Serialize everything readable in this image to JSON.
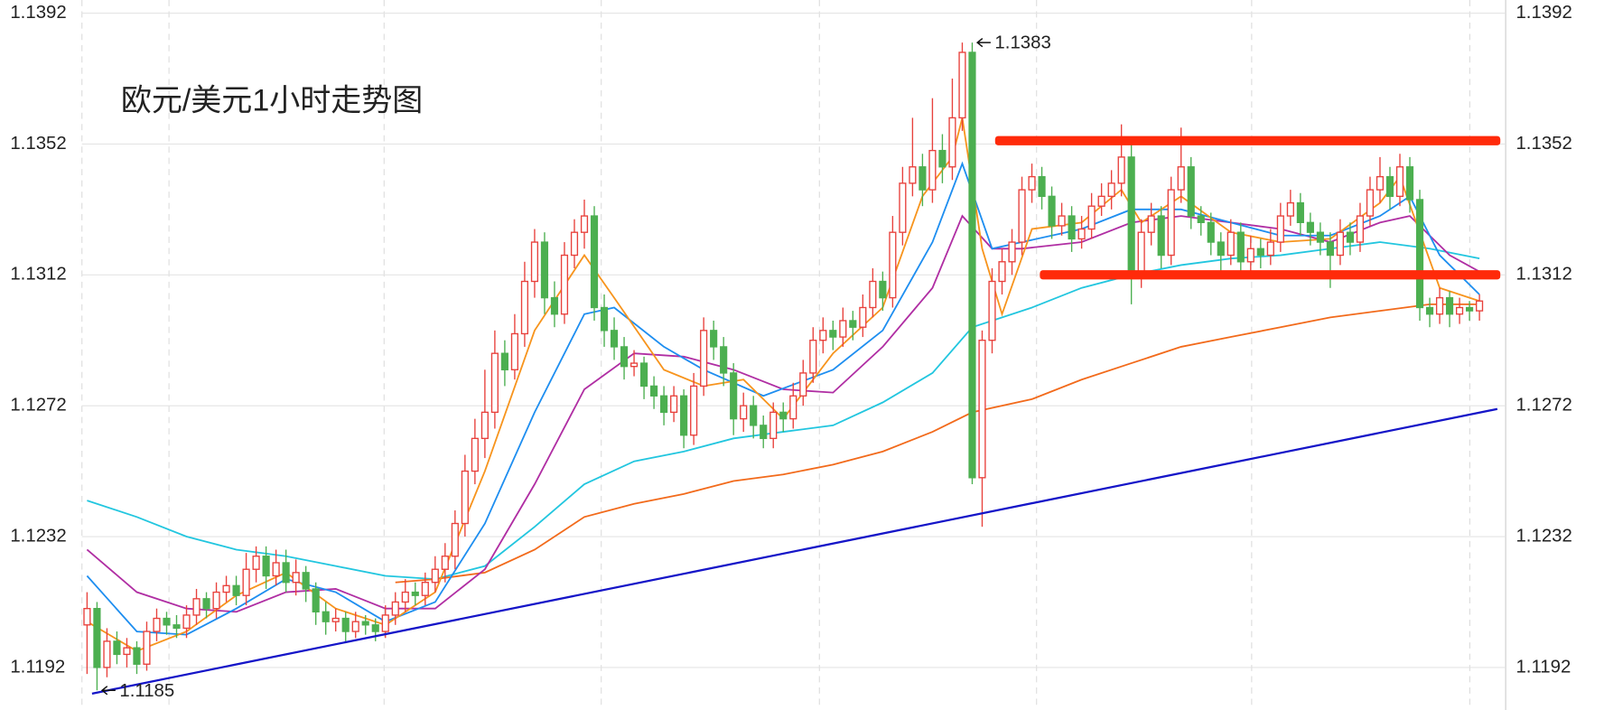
{
  "chart_data": {
    "type": "candlestick",
    "title": "欧元/美元1小时走势图",
    "title_color": "#ff2a0a",
    "ylim": [
      1.1179,
      1.1396
    ],
    "yticks": [
      1.1392,
      1.1352,
      1.1312,
      1.1272,
      1.1232,
      1.1192
    ],
    "grid": true,
    "up_color": "#e8413c",
    "down_color": "#4caf50",
    "ohlc": [
      [
        1.1205,
        1.1215,
        1.119,
        1.121
      ],
      [
        1.121,
        1.1212,
        1.1185,
        1.1192
      ],
      [
        1.1192,
        1.1204,
        1.1189,
        1.12
      ],
      [
        1.12,
        1.1203,
        1.1193,
        1.1196
      ],
      [
        1.1196,
        1.1201,
        1.1192,
        1.1198
      ],
      [
        1.1198,
        1.12,
        1.119,
        1.1193
      ],
      [
        1.1193,
        1.1206,
        1.1191,
        1.1203
      ],
      [
        1.1203,
        1.121,
        1.12,
        1.1207
      ],
      [
        1.1207,
        1.1209,
        1.1202,
        1.1205
      ],
      [
        1.1205,
        1.1208,
        1.1201,
        1.1204
      ],
      [
        1.1204,
        1.1211,
        1.1201,
        1.1208
      ],
      [
        1.1208,
        1.1216,
        1.1205,
        1.1213
      ],
      [
        1.1213,
        1.1215,
        1.1207,
        1.121
      ],
      [
        1.121,
        1.1218,
        1.1207,
        1.1215
      ],
      [
        1.1215,
        1.122,
        1.1212,
        1.1217
      ],
      [
        1.1217,
        1.122,
        1.1211,
        1.1214
      ],
      [
        1.1214,
        1.1227,
        1.1211,
        1.1222
      ],
      [
        1.1222,
        1.1229,
        1.1218,
        1.1226
      ],
      [
        1.1226,
        1.1229,
        1.1216,
        1.122
      ],
      [
        1.122,
        1.1228,
        1.1217,
        1.1224
      ],
      [
        1.1224,
        1.1228,
        1.1215,
        1.1218
      ],
      [
        1.1218,
        1.1225,
        1.1214,
        1.1221
      ],
      [
        1.1221,
        1.1223,
        1.1212,
        1.1216
      ],
      [
        1.1216,
        1.1218,
        1.1205,
        1.1209
      ],
      [
        1.1209,
        1.1212,
        1.1202,
        1.1206
      ],
      [
        1.1206,
        1.121,
        1.1203,
        1.1207
      ],
      [
        1.1207,
        1.1209,
        1.12,
        1.1203
      ],
      [
        1.1203,
        1.1209,
        1.1201,
        1.1206
      ],
      [
        1.1206,
        1.1208,
        1.1202,
        1.1205
      ],
      [
        1.1205,
        1.1207,
        1.12,
        1.1203
      ],
      [
        1.1203,
        1.1211,
        1.1201,
        1.1208
      ],
      [
        1.1208,
        1.1215,
        1.1205,
        1.1212
      ],
      [
        1.1212,
        1.1219,
        1.1209,
        1.1215
      ],
      [
        1.1215,
        1.1218,
        1.1211,
        1.1214
      ],
      [
        1.1214,
        1.1221,
        1.1211,
        1.1218
      ],
      [
        1.1218,
        1.1226,
        1.1215,
        1.1222
      ],
      [
        1.1222,
        1.123,
        1.1218,
        1.1226
      ],
      [
        1.1226,
        1.124,
        1.1222,
        1.1236
      ],
      [
        1.1236,
        1.1257,
        1.1232,
        1.1252
      ],
      [
        1.1252,
        1.1268,
        1.1248,
        1.1262
      ],
      [
        1.1262,
        1.1283,
        1.1256,
        1.127
      ],
      [
        1.127,
        1.1295,
        1.1265,
        1.1288
      ],
      [
        1.1288,
        1.1292,
        1.1278,
        1.1283
      ],
      [
        1.1283,
        1.13,
        1.128,
        1.1294
      ],
      [
        1.1294,
        1.1316,
        1.129,
        1.131
      ],
      [
        1.131,
        1.1326,
        1.1305,
        1.1322
      ],
      [
        1.1322,
        1.1325,
        1.13,
        1.1305
      ],
      [
        1.1305,
        1.131,
        1.1296,
        1.13
      ],
      [
        1.13,
        1.1322,
        1.1297,
        1.1318
      ],
      [
        1.1318,
        1.1329,
        1.1314,
        1.1325
      ],
      [
        1.1325,
        1.1335,
        1.132,
        1.133
      ],
      [
        1.133,
        1.1333,
        1.1298,
        1.1302
      ],
      [
        1.1302,
        1.1306,
        1.129,
        1.1295
      ],
      [
        1.1295,
        1.1299,
        1.1286,
        1.129
      ],
      [
        1.129,
        1.1293,
        1.128,
        1.1284
      ],
      [
        1.1284,
        1.1289,
        1.1281,
        1.1285
      ],
      [
        1.1285,
        1.1287,
        1.1274,
        1.1278
      ],
      [
        1.1278,
        1.1281,
        1.1271,
        1.1275
      ],
      [
        1.1275,
        1.1278,
        1.1266,
        1.127
      ],
      [
        1.127,
        1.1278,
        1.1267,
        1.1275
      ],
      [
        1.1275,
        1.1277,
        1.1259,
        1.1263
      ],
      [
        1.1263,
        1.1282,
        1.126,
        1.1278
      ],
      [
        1.1278,
        1.1299,
        1.1275,
        1.1295
      ],
      [
        1.1295,
        1.1298,
        1.1286,
        1.129
      ],
      [
        1.129,
        1.1293,
        1.1278,
        1.1282
      ],
      [
        1.1282,
        1.1285,
        1.1263,
        1.1268
      ],
      [
        1.1268,
        1.1276,
        1.1264,
        1.1272
      ],
      [
        1.1272,
        1.1275,
        1.1262,
        1.1266
      ],
      [
        1.1266,
        1.1269,
        1.1259,
        1.1262
      ],
      [
        1.1262,
        1.1273,
        1.1259,
        1.127
      ],
      [
        1.127,
        1.1273,
        1.1264,
        1.1268
      ],
      [
        1.1268,
        1.1279,
        1.1265,
        1.1275
      ],
      [
        1.1275,
        1.1286,
        1.1272,
        1.1282
      ],
      [
        1.1282,
        1.1296,
        1.1279,
        1.1292
      ],
      [
        1.1292,
        1.1299,
        1.1288,
        1.1295
      ],
      [
        1.1295,
        1.1298,
        1.1289,
        1.1293
      ],
      [
        1.1293,
        1.1302,
        1.129,
        1.1298
      ],
      [
        1.1298,
        1.1301,
        1.1292,
        1.1296
      ],
      [
        1.1296,
        1.1306,
        1.1293,
        1.1302
      ],
      [
        1.1302,
        1.1314,
        1.1299,
        1.131
      ],
      [
        1.131,
        1.1313,
        1.1301,
        1.1305
      ],
      [
        1.1305,
        1.133,
        1.1302,
        1.1325
      ],
      [
        1.1325,
        1.1345,
        1.1321,
        1.134
      ],
      [
        1.134,
        1.136,
        1.1336,
        1.1345
      ],
      [
        1.1345,
        1.1349,
        1.1333,
        1.1338
      ],
      [
        1.1338,
        1.1366,
        1.1334,
        1.135
      ],
      [
        1.135,
        1.1355,
        1.134,
        1.1345
      ],
      [
        1.1345,
        1.1372,
        1.1341,
        1.136
      ],
      [
        1.136,
        1.1383,
        1.1356,
        1.138
      ],
      [
        1.138,
        1.1383,
        1.1248,
        1.125
      ],
      [
        1.125,
        1.1295,
        1.1235,
        1.1292
      ],
      [
        1.1292,
        1.1314,
        1.1288,
        1.131
      ],
      [
        1.131,
        1.132,
        1.1306,
        1.1316
      ],
      [
        1.1316,
        1.1326,
        1.1312,
        1.1322
      ],
      [
        1.1322,
        1.1342,
        1.1318,
        1.1338
      ],
      [
        1.1338,
        1.1346,
        1.1334,
        1.1342
      ],
      [
        1.1342,
        1.1345,
        1.1332,
        1.1336
      ],
      [
        1.1336,
        1.1339,
        1.1323,
        1.1327
      ],
      [
        1.1327,
        1.1334,
        1.1324,
        1.133
      ],
      [
        1.133,
        1.1333,
        1.1319,
        1.1323
      ],
      [
        1.1323,
        1.133,
        1.132,
        1.1326
      ],
      [
        1.1326,
        1.1337,
        1.1323,
        1.1333
      ],
      [
        1.1333,
        1.134,
        1.133,
        1.1336
      ],
      [
        1.1336,
        1.1344,
        1.1332,
        1.134
      ],
      [
        1.134,
        1.1358,
        1.1336,
        1.1348
      ],
      [
        1.1348,
        1.1352,
        1.1303,
        1.1312
      ],
      [
        1.1312,
        1.1329,
        1.1308,
        1.1325
      ],
      [
        1.1325,
        1.1334,
        1.1321,
        1.133
      ],
      [
        1.133,
        1.1333,
        1.1314,
        1.1318
      ],
      [
        1.1318,
        1.1342,
        1.1315,
        1.1338
      ],
      [
        1.1338,
        1.1357,
        1.1334,
        1.1345
      ],
      [
        1.1345,
        1.1348,
        1.1326,
        1.133
      ],
      [
        1.133,
        1.1333,
        1.1324,
        1.1328
      ],
      [
        1.1328,
        1.1331,
        1.1318,
        1.1322
      ],
      [
        1.1322,
        1.1325,
        1.1313,
        1.1318
      ],
      [
        1.1318,
        1.1329,
        1.1315,
        1.1325
      ],
      [
        1.1325,
        1.1328,
        1.1312,
        1.1316
      ],
      [
        1.1316,
        1.1324,
        1.1313,
        1.132
      ],
      [
        1.132,
        1.1323,
        1.1314,
        1.1318
      ],
      [
        1.1318,
        1.1326,
        1.1315,
        1.1322
      ],
      [
        1.1322,
        1.1334,
        1.1319,
        1.133
      ],
      [
        1.133,
        1.1338,
        1.1327,
        1.1334
      ],
      [
        1.1334,
        1.1337,
        1.1324,
        1.1328
      ],
      [
        1.1328,
        1.1331,
        1.1321,
        1.1325
      ],
      [
        1.1325,
        1.1328,
        1.1318,
        1.1322
      ],
      [
        1.1322,
        1.1325,
        1.1308,
        1.1318
      ],
      [
        1.1318,
        1.1329,
        1.1315,
        1.1325
      ],
      [
        1.1325,
        1.1328,
        1.1318,
        1.1322
      ],
      [
        1.1322,
        1.1334,
        1.1319,
        1.133
      ],
      [
        1.133,
        1.1342,
        1.1327,
        1.1338
      ],
      [
        1.1338,
        1.1348,
        1.1334,
        1.1342
      ],
      [
        1.1342,
        1.1345,
        1.1332,
        1.1336
      ],
      [
        1.1336,
        1.1349,
        1.1333,
        1.1345
      ],
      [
        1.1345,
        1.1348,
        1.1331,
        1.1335
      ],
      [
        1.1335,
        1.1338,
        1.1298,
        1.1302
      ],
      [
        1.1302,
        1.1305,
        1.1296,
        1.13
      ],
      [
        1.13,
        1.1308,
        1.1297,
        1.1305
      ],
      [
        1.1305,
        1.1307,
        1.1296,
        1.13
      ],
      [
        1.13,
        1.1305,
        1.1297,
        1.1302
      ],
      [
        1.1302,
        1.1304,
        1.1298,
        1.1301
      ],
      [
        1.1301,
        1.1306,
        1.1298,
        1.1304
      ]
    ],
    "lines": [
      {
        "color": "#22c6df",
        "x": [
          0,
          5,
          10,
          15,
          20,
          25,
          30,
          35,
          40,
          45,
          50,
          55,
          60,
          65,
          70,
          75,
          80,
          85,
          89,
          95,
          100,
          105,
          110,
          115,
          120,
          125,
          130,
          135,
          140
        ],
        "values": [
          1.1243,
          1.1238,
          1.1232,
          1.1228,
          1.1226,
          1.1223,
          1.122,
          1.1219,
          1.1223,
          1.1235,
          1.1248,
          1.1255,
          1.1258,
          1.1262,
          1.1264,
          1.1266,
          1.1273,
          1.1282,
          1.1296,
          1.1302,
          1.1308,
          1.1312,
          1.1315,
          1.1317,
          1.1318,
          1.132,
          1.1322,
          1.132,
          1.1317
        ]
      },
      {
        "color": "#f26a1b",
        "x": [
          31,
          35,
          40,
          45,
          50,
          55,
          60,
          65,
          70,
          75,
          80,
          85,
          89,
          95,
          100,
          105,
          110,
          115,
          120,
          125,
          130,
          135,
          140
        ],
        "values": [
          1.1218,
          1.1219,
          1.1221,
          1.1228,
          1.1238,
          1.1242,
          1.1245,
          1.1249,
          1.1251,
          1.1254,
          1.1258,
          1.1264,
          1.127,
          1.1274,
          1.128,
          1.1285,
          1.129,
          1.1293,
          1.1296,
          1.1299,
          1.1301,
          1.1303,
          1.1303
        ]
      },
      {
        "color": "#b02ea3",
        "x": [
          0,
          5,
          10,
          15,
          20,
          25,
          30,
          35,
          40,
          45,
          50,
          55,
          60,
          65,
          70,
          75,
          80,
          85,
          88,
          91,
          94,
          100,
          105,
          110,
          120,
          125,
          130,
          133,
          137,
          140
        ],
        "values": [
          1.1228,
          1.1215,
          1.121,
          1.1209,
          1.1215,
          1.1216,
          1.121,
          1.121,
          1.1222,
          1.1248,
          1.1277,
          1.1288,
          1.1287,
          1.1283,
          1.1277,
          1.1276,
          1.129,
          1.1308,
          1.133,
          1.132,
          1.132,
          1.1322,
          1.1328,
          1.133,
          1.1326,
          1.1322,
          1.1328,
          1.133,
          1.1318,
          1.1313
        ]
      },
      {
        "color": "#1e8ef0",
        "x": [
          0,
          5,
          10,
          15,
          20,
          25,
          30,
          35,
          40,
          45,
          50,
          53,
          58,
          62,
          68,
          75,
          80,
          85,
          88,
          91,
          94,
          100,
          105,
          110,
          115,
          120,
          125,
          130,
          133,
          136,
          140
        ],
        "values": [
          1.122,
          1.1203,
          1.1202,
          1.121,
          1.1219,
          1.1215,
          1.1206,
          1.1212,
          1.1236,
          1.127,
          1.13,
          1.1302,
          1.129,
          1.1283,
          1.1275,
          1.1283,
          1.1295,
          1.1322,
          1.1346,
          1.132,
          1.1322,
          1.1326,
          1.1332,
          1.1332,
          1.1328,
          1.1324,
          1.1324,
          1.133,
          1.1336,
          1.1318,
          1.1306
        ]
      },
      {
        "color": "#f7941d",
        "x": [
          0,
          5,
          10,
          15,
          20,
          25,
          30,
          35,
          40,
          45,
          50,
          53,
          58,
          62,
          66,
          70,
          75,
          80,
          84,
          87,
          88,
          90,
          92,
          95,
          100,
          104,
          106,
          110,
          115,
          120,
          125,
          130,
          132,
          134,
          136,
          140
        ],
        "values": [
          1.1206,
          1.1197,
          1.1203,
          1.1214,
          1.1221,
          1.121,
          1.1205,
          1.1215,
          1.1252,
          1.1295,
          1.1318,
          1.1305,
          1.1283,
          1.1278,
          1.128,
          1.1268,
          1.1288,
          1.1302,
          1.1336,
          1.1348,
          1.136,
          1.132,
          1.13,
          1.1326,
          1.1328,
          1.1338,
          1.1328,
          1.1336,
          1.1325,
          1.1322,
          1.1323,
          1.1334,
          1.1342,
          1.1325,
          1.1308,
          1.1304
        ]
      }
    ],
    "trend_line": {
      "color": "#1515c8",
      "x": [
        0.5,
        141.8
      ],
      "values": [
        1.1184,
        1.1271
      ]
    },
    "levels": [
      {
        "color": "#ff2a0a",
        "value": 1.1353,
        "x": [
          91.3,
          142.1
        ]
      },
      {
        "color": "#ff2a0a",
        "value": 1.1312,
        "x": [
          95.8,
          142.1
        ]
      }
    ],
    "annotations": [
      {
        "value": 1.1383,
        "x": 89
      },
      {
        "value": 1.1185,
        "x": 1
      }
    ]
  }
}
